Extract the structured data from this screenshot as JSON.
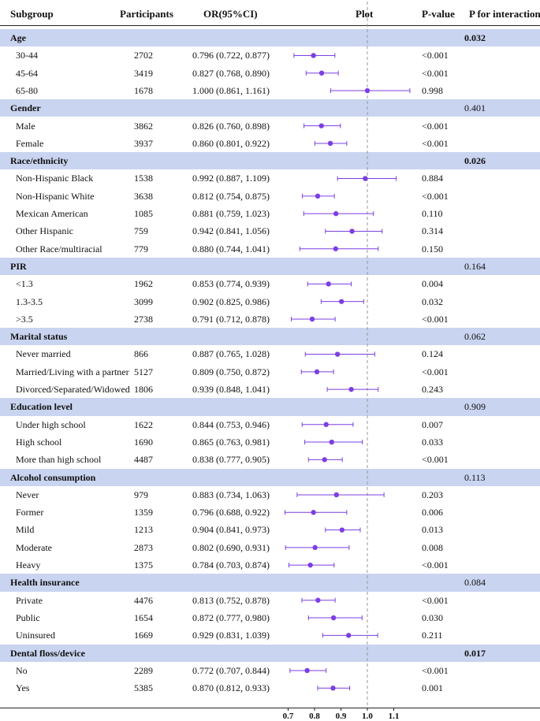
{
  "header": {
    "subgroup": "Subgroup",
    "participants": "Participants",
    "or": "OR(95%CI)",
    "plot": "Plot",
    "pvalue": "P-value",
    "pint": "P for interaction"
  },
  "colors": {
    "band": "#c9d4f0",
    "marker": "#7b3fe4",
    "refline": "#999999"
  },
  "chart_data": {
    "type": "forest",
    "reference_value": 1.0,
    "xlim": [
      0.7,
      1.1
    ],
    "ticks": [
      "0.7",
      "0.8",
      "0.9",
      "1.0",
      "1.1"
    ],
    "rows": [
      {
        "kind": "group",
        "label": "Age",
        "p_interaction": "0.032",
        "sig": true
      },
      {
        "kind": "sub",
        "label": "30-44",
        "n": "2702",
        "ci_text": "0.796 (0.722, 0.877)",
        "or": 0.796,
        "lo": 0.722,
        "hi": 0.877,
        "p": "<0.001"
      },
      {
        "kind": "sub",
        "label": "45-64",
        "n": "3419",
        "ci_text": "0.827 (0.768, 0.890)",
        "or": 0.827,
        "lo": 0.768,
        "hi": 0.89,
        "p": "<0.001"
      },
      {
        "kind": "sub",
        "label": "65-80",
        "n": "1678",
        "ci_text": "1.000 (0.861, 1.161)",
        "or": 1.0,
        "lo": 0.861,
        "hi": 1.161,
        "p": "0.998"
      },
      {
        "kind": "group",
        "label": "Gender",
        "p_interaction": "0.401",
        "sig": false
      },
      {
        "kind": "sub",
        "label": "Male",
        "n": "3862",
        "ci_text": "0.826 (0.760, 0.898)",
        "or": 0.826,
        "lo": 0.76,
        "hi": 0.898,
        "p": "<0.001"
      },
      {
        "kind": "sub",
        "label": "Female",
        "n": "3937",
        "ci_text": "0.860 (0.801, 0.922)",
        "or": 0.86,
        "lo": 0.801,
        "hi": 0.922,
        "p": "<0.001"
      },
      {
        "kind": "group",
        "label": "Race/ethnicity",
        "p_interaction": "0.026",
        "sig": true
      },
      {
        "kind": "sub",
        "label": "Non-Hispanic Black",
        "n": "1538",
        "ci_text": "0.992 (0.887, 1.109)",
        "or": 0.992,
        "lo": 0.887,
        "hi": 1.109,
        "p": "0.884"
      },
      {
        "kind": "sub",
        "label": "Non-Hispanic White",
        "n": "3638",
        "ci_text": "0.812 (0.754, 0.875)",
        "or": 0.812,
        "lo": 0.754,
        "hi": 0.875,
        "p": "<0.001"
      },
      {
        "kind": "sub",
        "label": "Mexican American",
        "n": "1085",
        "ci_text": "0.881 (0.759, 1.023)",
        "or": 0.881,
        "lo": 0.759,
        "hi": 1.023,
        "p": "0.110"
      },
      {
        "kind": "sub",
        "label": "Other Hispanic",
        "n": "759",
        "ci_text": "0.942 (0.841, 1.056)",
        "or": 0.942,
        "lo": 0.841,
        "hi": 1.056,
        "p": "0.314"
      },
      {
        "kind": "sub",
        "label": "Other Race/multiracial",
        "n": "779",
        "ci_text": "0.880 (0.744, 1.041)",
        "or": 0.88,
        "lo": 0.744,
        "hi": 1.041,
        "p": "0.150"
      },
      {
        "kind": "group",
        "label": "PIR",
        "p_interaction": "0.164",
        "sig": false
      },
      {
        "kind": "sub",
        "label": "<1.3",
        "n": "1962",
        "ci_text": "0.853 (0.774, 0.939)",
        "or": 0.853,
        "lo": 0.774,
        "hi": 0.939,
        "p": "0.004"
      },
      {
        "kind": "sub",
        "label": "1.3-3.5",
        "n": "3099",
        "ci_text": "0.902 (0.825, 0.986)",
        "or": 0.902,
        "lo": 0.825,
        "hi": 0.986,
        "p": "0.032"
      },
      {
        "kind": "sub",
        "label": ">3.5",
        "n": "2738",
        "ci_text": "0.791 (0.712, 0.878)",
        "or": 0.791,
        "lo": 0.712,
        "hi": 0.878,
        "p": "<0.001"
      },
      {
        "kind": "group",
        "label": "Marital status",
        "p_interaction": "0.062",
        "sig": false
      },
      {
        "kind": "sub",
        "label": "Never married",
        "n": "866",
        "ci_text": "0.887 (0.765, 1.028)",
        "or": 0.887,
        "lo": 0.765,
        "hi": 1.028,
        "p": "0.124"
      },
      {
        "kind": "sub",
        "label": "Married/Living with a partner",
        "n": "5127",
        "ci_text": "0.809 (0.750, 0.872)",
        "or": 0.809,
        "lo": 0.75,
        "hi": 0.872,
        "p": "<0.001"
      },
      {
        "kind": "sub",
        "label": "Divorced/Separated/Widowed",
        "n": "1806",
        "ci_text": "0.939 (0.848, 1.041)",
        "or": 0.939,
        "lo": 0.848,
        "hi": 1.041,
        "p": "0.243"
      },
      {
        "kind": "group",
        "label": "Education level",
        "p_interaction": "0.909",
        "sig": false
      },
      {
        "kind": "sub",
        "label": "Under high school",
        "n": "1622",
        "ci_text": "0.844 (0.753, 0.946)",
        "or": 0.844,
        "lo": 0.753,
        "hi": 0.946,
        "p": "0.007"
      },
      {
        "kind": "sub",
        "label": "High school",
        "n": "1690",
        "ci_text": "0.865 (0.763, 0.981)",
        "or": 0.865,
        "lo": 0.763,
        "hi": 0.981,
        "p": "0.033"
      },
      {
        "kind": "sub",
        "label": "More than high school",
        "n": "4487",
        "ci_text": "0.838 (0.777, 0.905)",
        "or": 0.838,
        "lo": 0.777,
        "hi": 0.905,
        "p": "<0.001"
      },
      {
        "kind": "group",
        "label": "Alcohol consumption",
        "p_interaction": "0.113",
        "sig": false
      },
      {
        "kind": "sub",
        "label": "Never",
        "n": "979",
        "ci_text": "0.883 (0.734, 1.063)",
        "or": 0.883,
        "lo": 0.734,
        "hi": 1.063,
        "p": "0.203"
      },
      {
        "kind": "sub",
        "label": "Former",
        "n": "1359",
        "ci_text": "0.796 (0.688, 0.922)",
        "or": 0.796,
        "lo": 0.688,
        "hi": 0.922,
        "p": "0.006"
      },
      {
        "kind": "sub",
        "label": "Mild",
        "n": "1213",
        "ci_text": "0.904 (0.841, 0.973)",
        "or": 0.904,
        "lo": 0.841,
        "hi": 0.973,
        "p": "0.013"
      },
      {
        "kind": "sub",
        "label": "Moderate",
        "n": "2873",
        "ci_text": "0.802 (0.690, 0.931)",
        "or": 0.802,
        "lo": 0.69,
        "hi": 0.931,
        "p": "0.008"
      },
      {
        "kind": "sub",
        "label": "Heavy",
        "n": "1375",
        "ci_text": "0.784 (0.703, 0.874)",
        "or": 0.784,
        "lo": 0.703,
        "hi": 0.874,
        "p": "<0.001"
      },
      {
        "kind": "group",
        "label": "Health insurance",
        "p_interaction": "0.084",
        "sig": false
      },
      {
        "kind": "sub",
        "label": "Private",
        "n": "4476",
        "ci_text": "0.813 (0.752, 0.878)",
        "or": 0.813,
        "lo": 0.752,
        "hi": 0.878,
        "p": "<0.001"
      },
      {
        "kind": "sub",
        "label": "Public",
        "n": "1654",
        "ci_text": "0.872 (0.777, 0.980)",
        "or": 0.872,
        "lo": 0.777,
        "hi": 0.98,
        "p": "0.030"
      },
      {
        "kind": "sub",
        "label": "Uninsured",
        "n": "1669",
        "ci_text": "0.929 (0.831, 1.039)",
        "or": 0.929,
        "lo": 0.831,
        "hi": 1.039,
        "p": "0.211"
      },
      {
        "kind": "group",
        "label": "Dental floss/device",
        "p_interaction": "0.017",
        "sig": true
      },
      {
        "kind": "sub",
        "label": "No",
        "n": "2289",
        "ci_text": "0.772 (0.707, 0.844)",
        "or": 0.772,
        "lo": 0.707,
        "hi": 0.844,
        "p": "<0.001"
      },
      {
        "kind": "sub",
        "label": "Yes",
        "n": "5385",
        "ci_text": "0.870 (0.812, 0.933)",
        "or": 0.87,
        "lo": 0.812,
        "hi": 0.933,
        "p": "0.001"
      }
    ]
  }
}
